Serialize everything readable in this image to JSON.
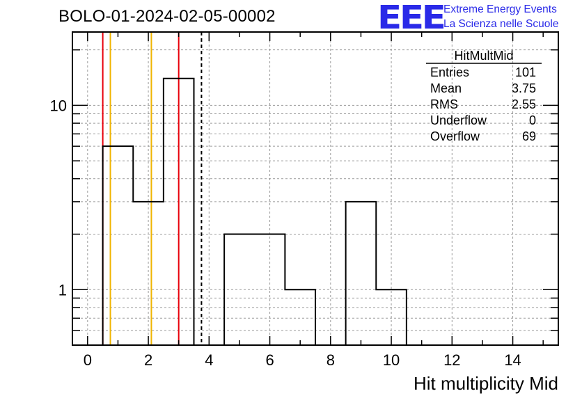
{
  "title": "BOLO-01-2024-02-05-00002",
  "logo": {
    "mark": "EEE",
    "line1": "Extreme Energy Events",
    "line2": "La Scienza nelle Scuole"
  },
  "stats_box": {
    "name": "HitMultMid",
    "rows": [
      {
        "label": "Entries",
        "value": "101"
      },
      {
        "label": "Mean",
        "value": "3.75"
      },
      {
        "label": "RMS",
        "value": "2.55"
      },
      {
        "label": "Underflow",
        "value": "0"
      },
      {
        "label": "Overflow",
        "value": "69"
      }
    ]
  },
  "colors": {
    "histogram": "#000000",
    "red_marker": "#e8000b",
    "orange_marker": "#f0b400",
    "grid": "#9a9a9a"
  },
  "chart_data": {
    "type": "histogram",
    "title": "BOLO-01-2024-02-05-00002",
    "xlabel": "Hit multiplicity Mid",
    "ylabel": "",
    "xlim": [
      -0.5,
      15.5
    ],
    "ylim": [
      0.5,
      25
    ],
    "yscale": "log",
    "grid": true,
    "x_ticks": [
      0,
      2,
      4,
      6,
      8,
      10,
      12,
      14
    ],
    "y_tick_labels": [
      1,
      10
    ],
    "bins": [
      {
        "low": 0.5,
        "high": 1.5,
        "count": 6
      },
      {
        "low": 1.5,
        "high": 2.5,
        "count": 3
      },
      {
        "low": 2.5,
        "high": 3.5,
        "count": 14
      },
      {
        "low": 4.5,
        "high": 5.5,
        "count": 2
      },
      {
        "low": 5.5,
        "high": 6.5,
        "count": 2
      },
      {
        "low": 6.5,
        "high": 7.5,
        "count": 1
      },
      {
        "low": 8.5,
        "high": 9.5,
        "count": 3
      },
      {
        "low": 9.5,
        "high": 10.5,
        "count": 1
      }
    ],
    "vertical_lines": [
      {
        "x": 0.5,
        "color": "red",
        "style": "solid"
      },
      {
        "x": 0.75,
        "color": "orange",
        "style": "solid"
      },
      {
        "x": 2.1,
        "color": "orange",
        "style": "solid"
      },
      {
        "x": 3.0,
        "color": "red",
        "style": "solid"
      },
      {
        "x": 3.75,
        "color": "black",
        "style": "dashed"
      }
    ]
  }
}
